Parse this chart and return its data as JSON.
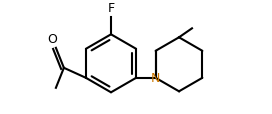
{
  "background_color": "#ffffff",
  "bond_color": "#000000",
  "n_color": "#cc7700",
  "f_label": "F",
  "n_label": "N",
  "o_label": "O",
  "line_width": 1.5,
  "font_size": 9.0,
  "figsize": [
    2.72,
    1.15
  ],
  "dpi": 100,
  "benz_r": 0.29,
  "pip_r": 0.27,
  "xlim": [
    -0.75,
    1.25
  ],
  "ylim": [
    -0.5,
    0.58
  ]
}
